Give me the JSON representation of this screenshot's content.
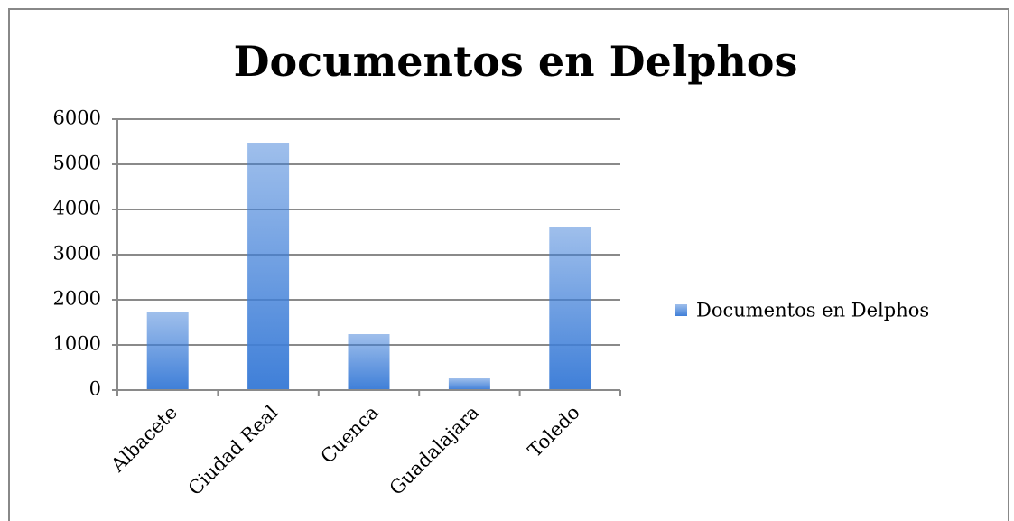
{
  "chart_data": {
    "type": "bar",
    "title": "Documentos en Delphos",
    "categories": [
      "Albacete",
      "Ciudad Real",
      "Cuenca",
      "Guadalajara",
      "Toledo"
    ],
    "series": [
      {
        "name": "Documentos en Delphos",
        "color": "#3f7fd8",
        "values": [
          1720,
          5480,
          1240,
          260,
          3620
        ]
      }
    ],
    "ylim": [
      0,
      6000
    ],
    "yticks": [
      0,
      1000,
      2000,
      3000,
      4000,
      5000,
      6000
    ],
    "grid": true,
    "legend": "right"
  }
}
